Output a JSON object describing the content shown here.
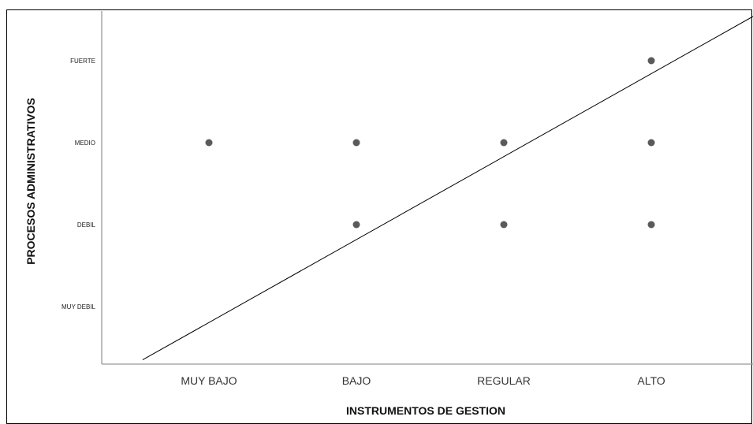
{
  "chart_data": {
    "type": "scatter",
    "title": "",
    "xlabel": "INSTRUMENTOS DE GESTION",
    "ylabel": "PROCESOS ADMINISTRATIVOS",
    "x_categories": [
      "MUY BAJO",
      "BAJO",
      "REGULAR",
      "ALTO"
    ],
    "y_categories": [
      "MUY DEBIL",
      "DEBIL",
      "MEDIO",
      "FUERTE"
    ],
    "points": [
      {
        "x": "MUY BAJO",
        "y": "MEDIO"
      },
      {
        "x": "BAJO",
        "y": "MEDIO"
      },
      {
        "x": "BAJO",
        "y": "DEBIL"
      },
      {
        "x": "REGULAR",
        "y": "MEDIO"
      },
      {
        "x": "REGULAR",
        "y": "DEBIL"
      },
      {
        "x": "ALTO",
        "y": "FUERTE"
      },
      {
        "x": "ALTO",
        "y": "MEDIO"
      },
      {
        "x": "ALTO",
        "y": "DEBIL"
      }
    ],
    "fit_line": {
      "start": {
        "x": 0.55,
        "y": 0.35
      },
      "end": {
        "x": 4.7,
        "y": 4.55
      }
    },
    "grid": false,
    "legend": "none",
    "colors": {
      "marker": "#5a5a5a",
      "line": "#000000",
      "axis": "#999999",
      "frame": "#000000"
    }
  }
}
